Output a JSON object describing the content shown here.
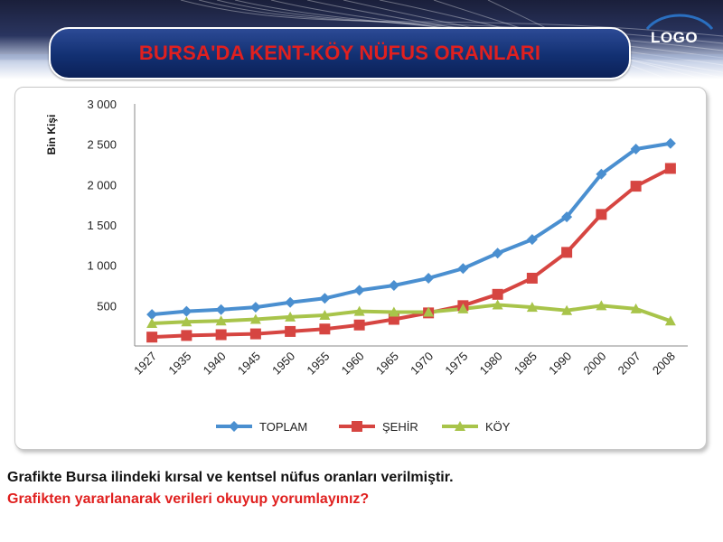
{
  "slide": {
    "title": "BURSA'DA KENT-KÖY NÜFUS ORANLARI",
    "logo": "LOGO",
    "caption_line1": "Grafikte Bursa ilindeki kırsal ve kentsel nüfus oranları verilmiştir.",
    "caption_line2": "Grafikten yararlanarak verileri okuyup yorumlayınız?",
    "colors": {
      "title": "#e0201f",
      "caption_highlight": "#e0201f",
      "band_dark": "#1a1f3a"
    }
  },
  "chart_data": {
    "type": "line",
    "ylabel": "Bin Kişi",
    "xlabel": "",
    "ylim": [
      0,
      3000
    ],
    "yticks": [
      500,
      1000,
      1500,
      2000,
      2500,
      3000
    ],
    "ytick_labels": [
      "500",
      "1 000",
      "1 500",
      "2 000",
      "2 500",
      "3 000"
    ],
    "categories": [
      "1927",
      "1935",
      "1940",
      "1945",
      "1950",
      "1955",
      "1960",
      "1965",
      "1970",
      "1975",
      "1980",
      "1985",
      "1990",
      "2000",
      "2007",
      "2008"
    ],
    "legend_position": "bottom",
    "grid": false,
    "series": [
      {
        "name": "TOPLAM",
        "color": "#4a8fd0",
        "marker": "diamond",
        "values": [
          390,
          430,
          450,
          480,
          540,
          590,
          690,
          750,
          840,
          960,
          1150,
          1320,
          1600,
          2130,
          2440,
          2510
        ]
      },
      {
        "name": "ŞEHİR",
        "color": "#d64541",
        "marker": "square",
        "values": [
          110,
          130,
          140,
          150,
          180,
          210,
          260,
          330,
          410,
          500,
          640,
          840,
          1160,
          1630,
          1980,
          2200
        ]
      },
      {
        "name": "KÖY",
        "color": "#a8c44a",
        "marker": "triangle",
        "values": [
          280,
          300,
          310,
          330,
          360,
          380,
          430,
          420,
          420,
          460,
          510,
          480,
          440,
          500,
          460,
          310
        ]
      }
    ]
  }
}
